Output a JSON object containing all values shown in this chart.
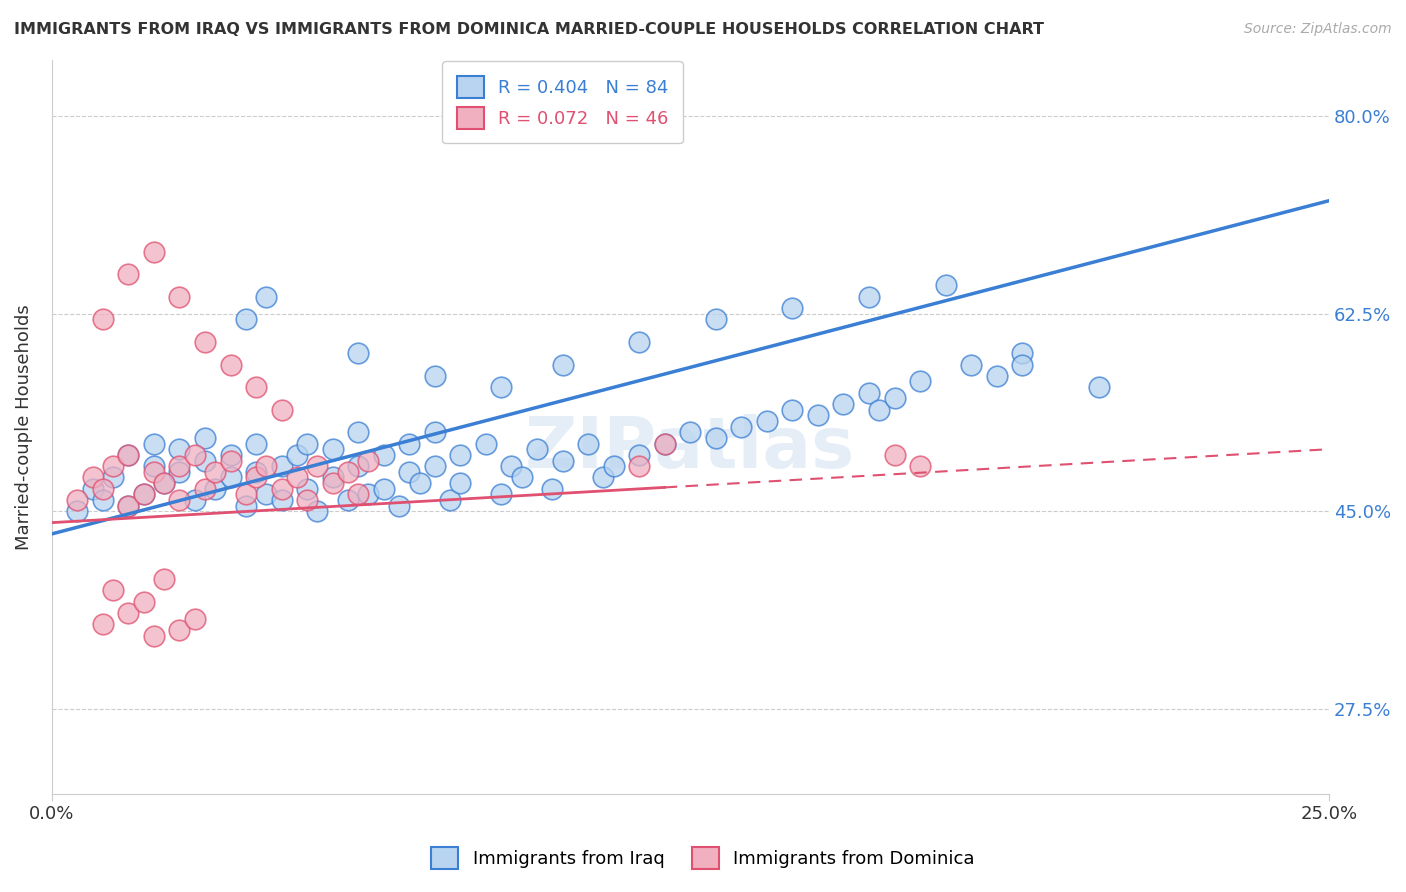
{
  "title": "IMMIGRANTS FROM IRAQ VS IMMIGRANTS FROM DOMINICA MARRIED-COUPLE HOUSEHOLDS CORRELATION CHART",
  "source": "Source: ZipAtlas.com",
  "ylabel_label": "Married-couple Households",
  "legend_iraq": "R = 0.404   N = 84",
  "legend_dominica": "R = 0.072   N = 46",
  "legend_label_iraq": "Immigrants from Iraq",
  "legend_label_dominica": "Immigrants from Dominica",
  "color_iraq": "#b8d4f0",
  "color_iraq_line": "#3a7fd4",
  "color_dominica": "#f0b0c0",
  "color_dominica_line": "#e05070",
  "watermark": "ZIPatlas",
  "xlim": [
    0.0,
    0.25
  ],
  "ylim": [
    0.2,
    0.85
  ],
  "ytick_vals": [
    0.275,
    0.45,
    0.625,
    0.8
  ],
  "iraq_x": [
    0.005,
    0.008,
    0.01,
    0.012,
    0.015,
    0.015,
    0.018,
    0.02,
    0.02,
    0.022,
    0.025,
    0.025,
    0.028,
    0.03,
    0.03,
    0.032,
    0.035,
    0.035,
    0.038,
    0.04,
    0.04,
    0.042,
    0.045,
    0.045,
    0.048,
    0.05,
    0.05,
    0.052,
    0.055,
    0.055,
    0.058,
    0.06,
    0.06,
    0.062,
    0.065,
    0.065,
    0.068,
    0.07,
    0.07,
    0.072,
    0.075,
    0.075,
    0.078,
    0.08,
    0.08,
    0.085,
    0.088,
    0.09,
    0.092,
    0.095,
    0.098,
    0.1,
    0.105,
    0.108,
    0.11,
    0.115,
    0.12,
    0.125,
    0.13,
    0.135,
    0.14,
    0.145,
    0.15,
    0.155,
    0.16,
    0.162,
    0.165,
    0.17,
    0.18,
    0.185,
    0.19,
    0.038,
    0.042,
    0.06,
    0.075,
    0.088,
    0.1,
    0.115,
    0.13,
    0.145,
    0.16,
    0.175,
    0.19,
    0.205
  ],
  "iraq_y": [
    0.45,
    0.47,
    0.46,
    0.48,
    0.5,
    0.455,
    0.465,
    0.49,
    0.51,
    0.475,
    0.485,
    0.505,
    0.46,
    0.495,
    0.515,
    0.47,
    0.48,
    0.5,
    0.455,
    0.485,
    0.51,
    0.465,
    0.49,
    0.46,
    0.5,
    0.47,
    0.51,
    0.45,
    0.48,
    0.505,
    0.46,
    0.49,
    0.52,
    0.465,
    0.5,
    0.47,
    0.455,
    0.485,
    0.51,
    0.475,
    0.49,
    0.52,
    0.46,
    0.5,
    0.475,
    0.51,
    0.465,
    0.49,
    0.48,
    0.505,
    0.47,
    0.495,
    0.51,
    0.48,
    0.49,
    0.5,
    0.51,
    0.52,
    0.515,
    0.525,
    0.53,
    0.54,
    0.535,
    0.545,
    0.555,
    0.54,
    0.55,
    0.565,
    0.58,
    0.57,
    0.59,
    0.62,
    0.64,
    0.59,
    0.57,
    0.56,
    0.58,
    0.6,
    0.62,
    0.63,
    0.64,
    0.65,
    0.58,
    0.56
  ],
  "dominica_x": [
    0.005,
    0.008,
    0.01,
    0.012,
    0.015,
    0.015,
    0.018,
    0.02,
    0.022,
    0.025,
    0.025,
    0.028,
    0.03,
    0.032,
    0.035,
    0.038,
    0.04,
    0.042,
    0.045,
    0.048,
    0.05,
    0.052,
    0.055,
    0.058,
    0.06,
    0.062,
    0.01,
    0.015,
    0.02,
    0.025,
    0.03,
    0.035,
    0.04,
    0.045,
    0.01,
    0.012,
    0.015,
    0.018,
    0.02,
    0.022,
    0.025,
    0.028,
    0.115,
    0.12,
    0.165,
    0.17
  ],
  "dominica_y": [
    0.46,
    0.48,
    0.47,
    0.49,
    0.5,
    0.455,
    0.465,
    0.485,
    0.475,
    0.49,
    0.46,
    0.5,
    0.47,
    0.485,
    0.495,
    0.465,
    0.48,
    0.49,
    0.47,
    0.48,
    0.46,
    0.49,
    0.475,
    0.485,
    0.465,
    0.495,
    0.62,
    0.66,
    0.68,
    0.64,
    0.6,
    0.58,
    0.56,
    0.54,
    0.35,
    0.38,
    0.36,
    0.37,
    0.34,
    0.39,
    0.345,
    0.355,
    0.49,
    0.51,
    0.5,
    0.49
  ]
}
